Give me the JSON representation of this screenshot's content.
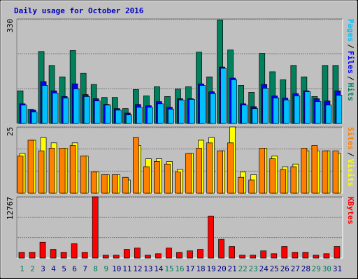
{
  "chart_data": [
    {
      "type": "bar",
      "title": "Daily usage for October 2016",
      "series": [
        {
          "name": "Hits",
          "color": "#00805c",
          "values": [
            103,
            45,
            227,
            183,
            147,
            230,
            158,
            123,
            82,
            82,
            47,
            107,
            87,
            116,
            85,
            109,
            116,
            225,
            147,
            326,
            232,
            120,
            98,
            221,
            163,
            138,
            183,
            147,
            85,
            183,
            183
          ]
        },
        {
          "name": "Files",
          "color": "#0000ff",
          "values": [
            62,
            42,
            132,
            103,
            85,
            125,
            91,
            78,
            60,
            47,
            33,
            60,
            56,
            69,
            51,
            78,
            78,
            125,
            100,
            178,
            143,
            62,
            53,
            123,
            87,
            80,
            94,
            103,
            78,
            71,
            103
          ]
        },
        {
          "name": "Pages",
          "color": "#00c0ff",
          "values": [
            58,
            36,
            120,
            96,
            80,
            109,
            85,
            71,
            58,
            42,
            27,
            51,
            51,
            62,
            45,
            74,
            76,
            120,
            94,
            174,
            138,
            58,
            47,
            111,
            80,
            74,
            87,
            100,
            69,
            58,
            89
          ]
        }
      ],
      "legend_separator": "/",
      "ylim": [
        0,
        330
      ],
      "yticks": [
        330
      ]
    },
    {
      "type": "bar",
      "series": [
        {
          "name": "Visits",
          "color": "#ffff00",
          "values": [
            15,
            20,
            21,
            19,
            17,
            19,
            14,
            8,
            7,
            7,
            5,
            18,
            13,
            13,
            12,
            9,
            15,
            20,
            21,
            16,
            25,
            8,
            7,
            17,
            14,
            10,
            11,
            16,
            16,
            16,
            15
          ]
        },
        {
          "name": "Sites",
          "color": "#ff8000",
          "values": [
            14,
            20,
            16,
            17,
            17,
            18,
            14,
            8,
            7,
            7,
            6,
            21,
            10,
            12,
            11,
            8,
            15,
            17,
            19,
            16,
            19,
            6,
            5,
            17,
            13,
            9,
            10,
            17,
            18,
            16,
            16
          ]
        }
      ],
      "legend_separator": "/",
      "ylim": [
        0,
        25
      ],
      "yticks": [
        25
      ]
    },
    {
      "type": "bar",
      "categories": [
        "1",
        "2",
        "3",
        "4",
        "5",
        "6",
        "7",
        "8",
        "9",
        "10",
        "11",
        "12",
        "13",
        "14",
        "15",
        "16",
        "17",
        "18",
        "19",
        "20",
        "21",
        "22",
        "23",
        "24",
        "25",
        "26",
        "27",
        "28",
        "29",
        "30",
        "31"
      ],
      "category_colors": [
        "#00805c",
        "#00805c",
        "#000080",
        "#000080",
        "#000080",
        "#000080",
        "#000080",
        "#00805c",
        "#00805c",
        "#000080",
        "#000080",
        "#000080",
        "#000080",
        "#000080",
        "#00805c",
        "#00805c",
        "#000080",
        "#000080",
        "#000080",
        "#000080",
        "#000080",
        "#00805c",
        "#00805c",
        "#000080",
        "#000080",
        "#000080",
        "#000080",
        "#000080",
        "#00805c",
        "#00805c",
        "#000080"
      ],
      "series": [
        {
          "name": "KBytes",
          "color": "#ff0000",
          "values": [
            1200,
            1200,
            3300,
            1800,
            1200,
            3000,
            1200,
            12767,
            600,
            600,
            1800,
            2100,
            600,
            900,
            2100,
            1200,
            1500,
            1800,
            8700,
            3900,
            2400,
            600,
            600,
            1500,
            900,
            2400,
            1200,
            1200,
            600,
            900,
            2400
          ]
        }
      ],
      "ylim": [
        0,
        12767
      ],
      "yticks": [
        12767
      ]
    }
  ]
}
